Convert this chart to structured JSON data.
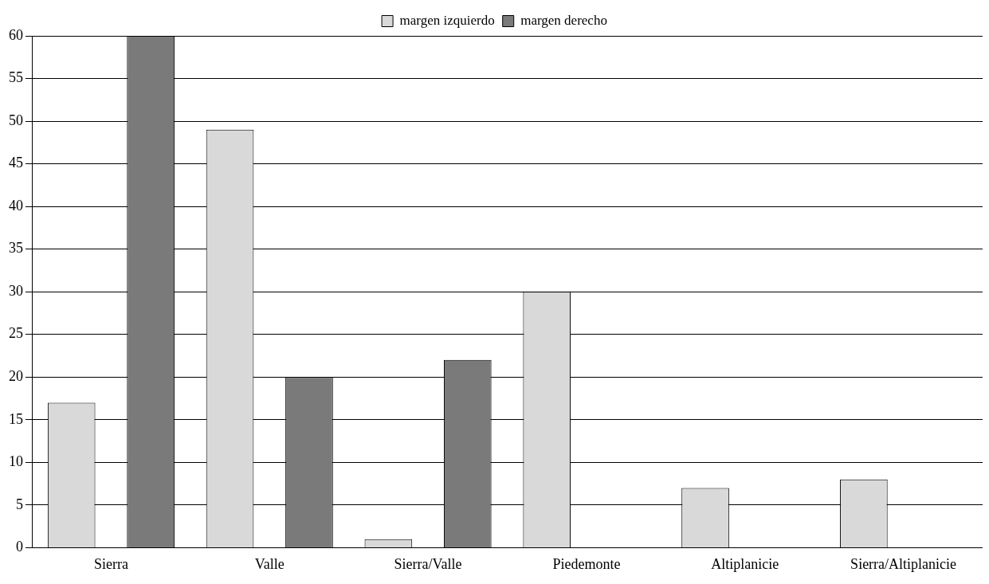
{
  "chart_data": {
    "type": "bar",
    "categories": [
      "Sierra",
      "Valle",
      "Sierra/Valle",
      "Piedemonte",
      "Altiplanicie",
      "Sierra/Altiplanicie"
    ],
    "series": [
      {
        "name": "margen izquierdo",
        "color": "#d9d9d9",
        "values": [
          17,
          49,
          1,
          30,
          7,
          8
        ]
      },
      {
        "name": "margen derecho",
        "color": "#7a7a7a",
        "values": [
          60,
          20,
          22,
          0,
          0,
          0
        ]
      }
    ],
    "ylim": [
      0,
      60
    ],
    "yticks": [
      0,
      5,
      10,
      15,
      20,
      25,
      30,
      35,
      40,
      45,
      50,
      55,
      60
    ],
    "grid": "y",
    "legend": "top"
  }
}
